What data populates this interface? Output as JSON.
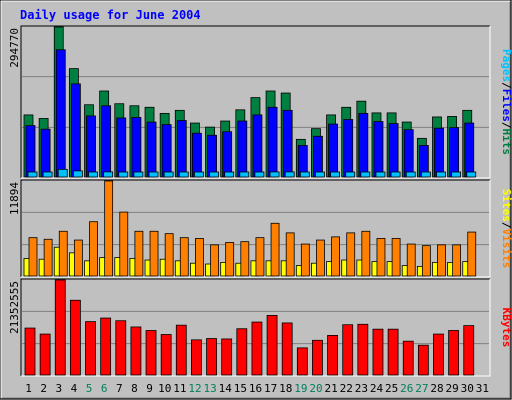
{
  "chart_data": [
    {
      "type": "bar",
      "title": "Daily usage for June 2004",
      "panel": "hits-files-pages",
      "categories": [
        "1",
        "2",
        "3",
        "4",
        "5",
        "6",
        "7",
        "8",
        "9",
        "10",
        "11",
        "12",
        "13",
        "14",
        "15",
        "16",
        "17",
        "18",
        "19",
        "20",
        "21",
        "22",
        "23",
        "24",
        "25",
        "26",
        "27",
        "28",
        "29",
        "30",
        "31"
      ],
      "series": [
        {
          "name": "Hits",
          "color": "#008040",
          "values": [
            122000,
            115000,
            294770,
            213000,
            142000,
            169000,
            144000,
            140000,
            137000,
            125000,
            131000,
            106000,
            98000,
            110000,
            132000,
            156000,
            169000,
            165000,
            74000,
            95000,
            122000,
            137000,
            149000,
            126000,
            126000,
            108000,
            76000,
            118000,
            119000,
            131000,
            0
          ]
        },
        {
          "name": "Files",
          "color": "#0000ff",
          "values": [
            101000,
            94000,
            250000,
            183000,
            120000,
            140000,
            116000,
            117000,
            108000,
            103000,
            111000,
            86000,
            82000,
            89000,
            110000,
            122000,
            137000,
            131000,
            62000,
            80000,
            104000,
            113000,
            125000,
            109000,
            105000,
            93000,
            62000,
            96000,
            97000,
            106000,
            0
          ]
        },
        {
          "name": "Pages",
          "color": "#00c0ff",
          "values": [
            9000,
            8000,
            15000,
            12000,
            9000,
            10000,
            9000,
            9000,
            9000,
            8000,
            8000,
            7000,
            7000,
            8000,
            8000,
            9000,
            10000,
            10000,
            6000,
            7000,
            8000,
            9000,
            9000,
            8000,
            8000,
            7000,
            6000,
            8000,
            8000,
            8000,
            0
          ]
        }
      ],
      "ylim": [
        0,
        294770
      ],
      "ytick_labels": [
        "294770"
      ],
      "legend": [
        "Pages",
        "Files",
        "Hits"
      ],
      "legend_placement": "right"
    },
    {
      "type": "bar",
      "panel": "sites-visits",
      "categories": [
        "1",
        "2",
        "3",
        "4",
        "5",
        "6",
        "7",
        "8",
        "9",
        "10",
        "11",
        "12",
        "13",
        "14",
        "15",
        "16",
        "17",
        "18",
        "19",
        "20",
        "21",
        "22",
        "23",
        "24",
        "25",
        "26",
        "27",
        "28",
        "29",
        "30",
        "31"
      ],
      "series": [
        {
          "name": "Visits",
          "color": "#ff8000",
          "values": [
            4800,
            4600,
            5600,
            4500,
            6800,
            11894,
            8000,
            5600,
            5600,
            5300,
            4800,
            4700,
            3900,
            4200,
            4300,
            4800,
            6600,
            5400,
            4000,
            4500,
            4900,
            5400,
            5600,
            4700,
            4700,
            4000,
            3800,
            3900,
            3900,
            5500,
            0
          ]
        },
        {
          "name": "Sites",
          "color": "#ffff00",
          "values": [
            2200,
            2100,
            3600,
            2900,
            1900,
            2300,
            2300,
            2200,
            2000,
            2100,
            1900,
            1600,
            1500,
            1700,
            1600,
            1900,
            1900,
            1900,
            1300,
            1600,
            1800,
            2000,
            2000,
            1800,
            1800,
            1300,
            1200,
            1700,
            1700,
            1800,
            0
          ]
        }
      ],
      "ylim": [
        0,
        11894
      ],
      "ytick_labels": [
        "11894"
      ],
      "legend": [
        "Sites",
        "Visits"
      ],
      "legend_placement": "right"
    },
    {
      "type": "bar",
      "panel": "kbytes",
      "categories": [
        "1",
        "2",
        "3",
        "4",
        "5",
        "6",
        "7",
        "8",
        "9",
        "10",
        "11",
        "12",
        "13",
        "14",
        "15",
        "16",
        "17",
        "18",
        "19",
        "20",
        "21",
        "22",
        "23",
        "24",
        "25",
        "26",
        "27",
        "28",
        "29",
        "30",
        "31"
      ],
      "series": [
        {
          "name": "KBytes",
          "color": "#ff0000",
          "values": [
            10550000,
            9200000,
            21352555,
            16800000,
            12000000,
            12800000,
            12200000,
            10800000,
            10000000,
            9100000,
            11200000,
            7900000,
            8200000,
            8100000,
            10400000,
            11900000,
            13400000,
            11700000,
            6100000,
            7800000,
            8900000,
            11300000,
            11400000,
            10300000,
            10300000,
            7600000,
            6700000,
            9200000,
            10000000,
            11100000,
            0
          ]
        }
      ],
      "ylim": [
        0,
        21352555
      ],
      "ytick_labels": [
        "21352555"
      ],
      "legend": [
        "KBytes"
      ],
      "legend_placement": "right"
    }
  ],
  "weekend_days": [
    "5",
    "6",
    "12",
    "13",
    "19",
    "20",
    "26",
    "27"
  ],
  "colors": {
    "background": "#c0c0c0",
    "title": "#0000ff",
    "weekday_label": "#000000",
    "weekend_label": "#00805c",
    "legend_separator": "#000000"
  }
}
